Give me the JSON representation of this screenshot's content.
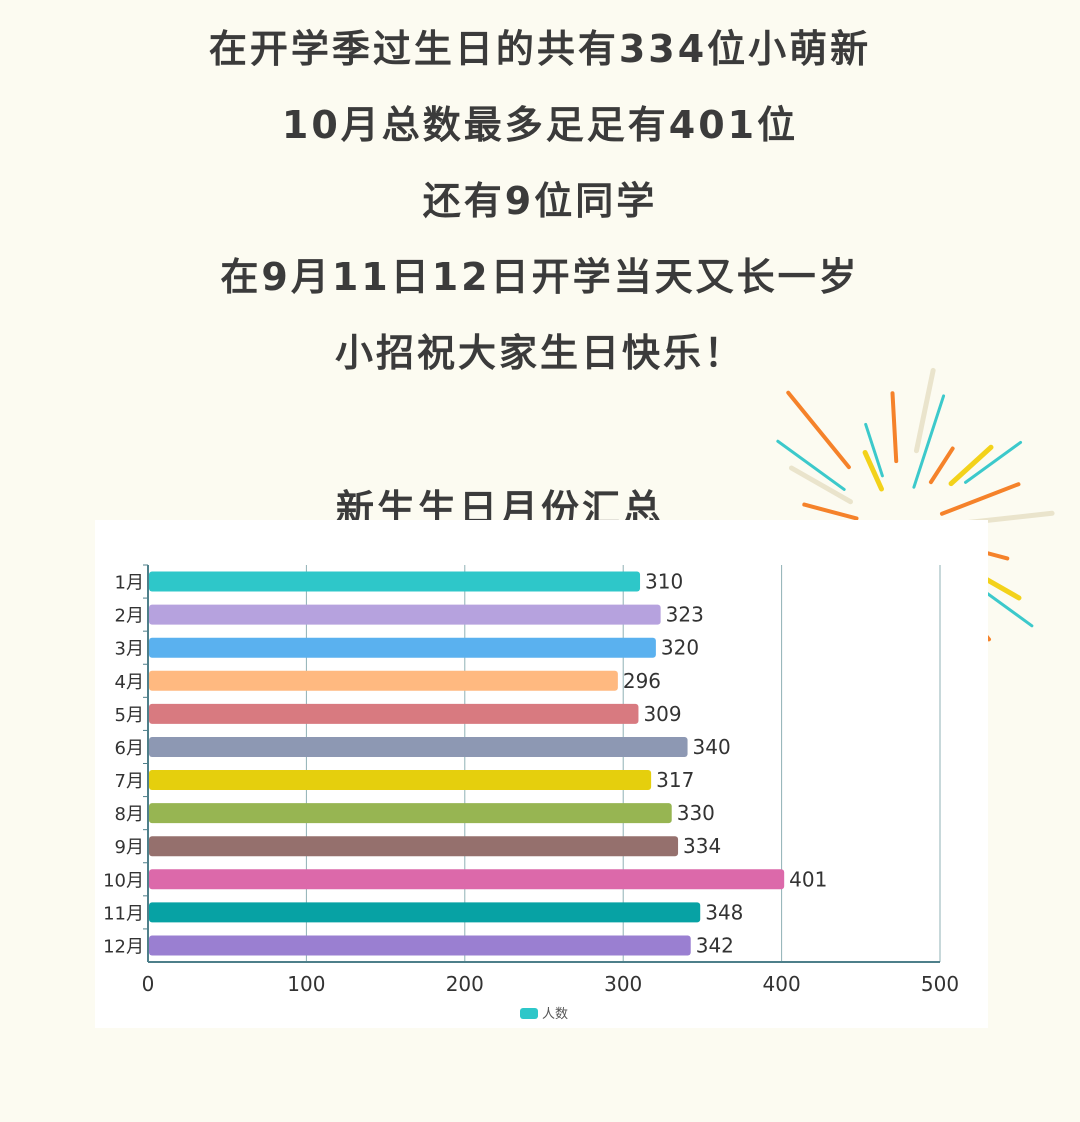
{
  "intro": {
    "lines": [
      "在开学季过生日的共有334位小萌新",
      "10月总数最多足足有401位",
      "还有9位同学",
      "在9月11日12日开学当天又长一岁",
      "小招祝大家生日快乐！"
    ]
  },
  "chart_data": {
    "type": "bar",
    "orientation": "horizontal",
    "title": "新生生日月份汇总",
    "categories": [
      "1月",
      "2月",
      "3月",
      "4月",
      "5月",
      "6月",
      "7月",
      "8月",
      "9月",
      "10月",
      "11月",
      "12月"
    ],
    "series": [
      {
        "name": "人数",
        "values": [
          310,
          323,
          320,
          296,
          309,
          340,
          317,
          330,
          334,
          401,
          348,
          342
        ]
      }
    ],
    "bar_colors": [
      "#2ec7c9",
      "#b6a2de",
      "#5ab1ef",
      "#ffb980",
      "#d87a80",
      "#8d98b3",
      "#e5cf0d",
      "#97b552",
      "#95706d",
      "#dc69aa",
      "#07a2a4",
      "#9a7fd1"
    ],
    "xlim": [
      0,
      500
    ],
    "x_ticks": [
      "0",
      "100",
      "200",
      "300",
      "400",
      "500"
    ],
    "grid": true,
    "legend": "bottom-center",
    "legend_color": "#2ec7c9",
    "xlabel": "",
    "ylabel": ""
  },
  "colors": {
    "background": "#fcfbf1",
    "text": "#3b3b3b",
    "axis": "#4e7f8a",
    "grid": "#8fb0b5"
  }
}
